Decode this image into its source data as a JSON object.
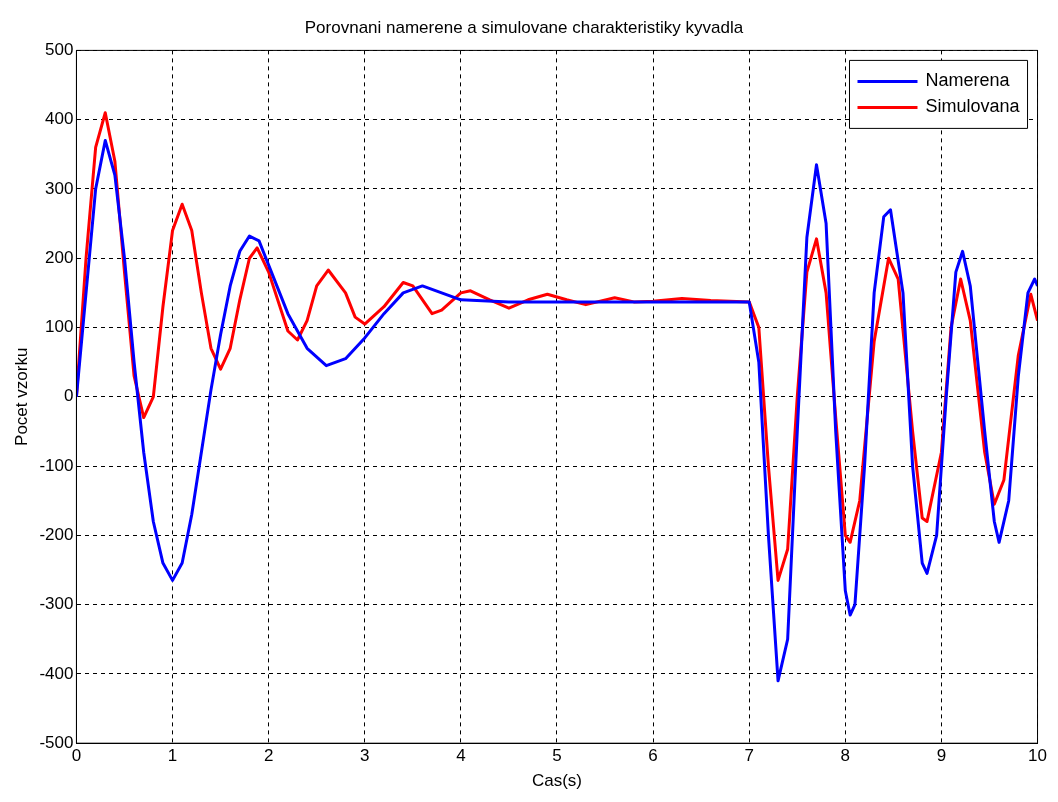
{
  "chart_data": {
    "type": "line",
    "title": "Porovnani namerene a simulovane charakteristiky kyvadla",
    "xlabel": "Cas(s)",
    "ylabel": "Pocet vzorku",
    "xlim": [
      0,
      10
    ],
    "xticks": [
      0,
      1,
      2,
      3,
      4,
      5,
      6,
      7,
      8,
      9,
      10
    ],
    "ylim": [
      -500,
      500
    ],
    "yticks": [
      -500,
      -400,
      -300,
      -200,
      -100,
      0,
      100,
      200,
      300,
      400,
      500
    ],
    "grid": true,
    "legend": "top right",
    "marker": "none",
    "line_style": "solid",
    "series": [
      {
        "name": "Namerena",
        "color": "#0000ff",
        "x": [
          0,
          0.1,
          0.2,
          0.3,
          0.4,
          0.5,
          0.6,
          0.7,
          0.8,
          0.9,
          1.0,
          1.1,
          1.2,
          1.3,
          1.4,
          1.5,
          1.6,
          1.7,
          1.8,
          1.9,
          2.0,
          2.2,
          2.4,
          2.6,
          2.8,
          3.0,
          3.2,
          3.4,
          3.6,
          3.8,
          4.0,
          4.5,
          5,
          6,
          7.0,
          7.1,
          7.2,
          7.3,
          7.4,
          7.5,
          7.6,
          7.7,
          7.8,
          7.9,
          8.0,
          8.05,
          8.1,
          8.2,
          8.3,
          8.4,
          8.47,
          8.6,
          8.7,
          8.8,
          8.85,
          8.95,
          9.05,
          9.15,
          9.22,
          9.3,
          9.45,
          9.55,
          9.6,
          9.7,
          9.8,
          9.9,
          9.97,
          10
        ],
        "values": [
          0,
          150,
          300,
          370,
          320,
          200,
          50,
          -80,
          -180,
          -240,
          -265,
          -240,
          -170,
          -80,
          10,
          90,
          160,
          210,
          232,
          225,
          190,
          120,
          70,
          45,
          55,
          85,
          120,
          150,
          160,
          150,
          140,
          137,
          137,
          137,
          137,
          50,
          -200,
          -410,
          -350,
          -50,
          230,
          335,
          250,
          -50,
          -280,
          -315,
          -300,
          -100,
          150,
          260,
          270,
          150,
          -100,
          -240,
          -255,
          -200,
          0,
          180,
          210,
          160,
          -50,
          -180,
          -210,
          -150,
          30,
          150,
          170,
          160
        ]
      },
      {
        "name": "Simulovana",
        "color": "#ff0000",
        "x": [
          0,
          0.1,
          0.2,
          0.3,
          0.4,
          0.5,
          0.6,
          0.7,
          0.8,
          0.9,
          1.0,
          1.1,
          1.2,
          1.3,
          1.4,
          1.5,
          1.6,
          1.7,
          1.8,
          1.88,
          2.0,
          2.2,
          2.3,
          2.4,
          2.5,
          2.62,
          2.8,
          2.9,
          3.0,
          3.2,
          3.4,
          3.5,
          3.7,
          3.8,
          4.0,
          4.1,
          4.3,
          4.5,
          4.7,
          4.9,
          5.1,
          5.3,
          5.6,
          5.8,
          6.0,
          6.3,
          6.6,
          7.0,
          7.1,
          7.2,
          7.3,
          7.4,
          7.5,
          7.6,
          7.7,
          7.8,
          7.9,
          8.0,
          8.05,
          8.15,
          8.3,
          8.45,
          8.55,
          8.7,
          8.8,
          8.85,
          9.0,
          9.1,
          9.2,
          9.3,
          9.45,
          9.55,
          9.65,
          9.8,
          9.93,
          10
        ],
        "values": [
          0,
          200,
          360,
          410,
          340,
          180,
          30,
          -30,
          0,
          130,
          240,
          278,
          240,
          150,
          70,
          40,
          70,
          140,
          200,
          215,
          180,
          95,
          82,
          110,
          160,
          183,
          150,
          115,
          105,
          130,
          165,
          160,
          120,
          125,
          150,
          153,
          140,
          128,
          140,
          148,
          140,
          133,
          143,
          137,
          138,
          142,
          139,
          137,
          100,
          -100,
          -265,
          -220,
          0,
          180,
          228,
          150,
          -30,
          -200,
          -210,
          -150,
          80,
          200,
          170,
          -50,
          -175,
          -180,
          -80,
          100,
          170,
          110,
          -80,
          -155,
          -120,
          60,
          148,
          110
        ]
      }
    ]
  }
}
